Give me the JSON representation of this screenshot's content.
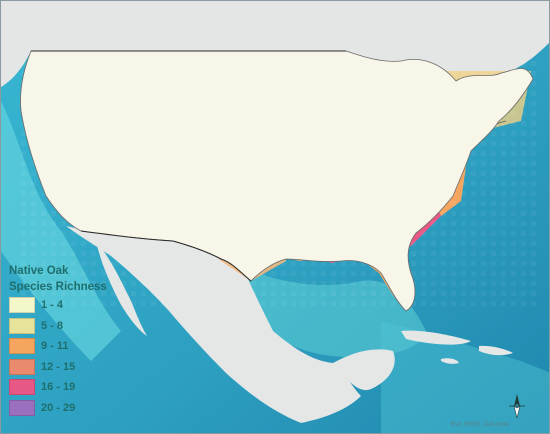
{
  "legend": {
    "title_line1": "Native Oak",
    "title_line2": "Species Richness",
    "classes": [
      {
        "label": "1 - 4",
        "color": "#f4f7c9"
      },
      {
        "label": "5 - 8",
        "color": "#e7e39a"
      },
      {
        "label": "9 - 11",
        "color": "#f6a55f"
      },
      {
        "label": "12 - 15",
        "color": "#e98a6e"
      },
      {
        "label": "16 - 19",
        "color": "#e75886"
      },
      {
        "label": "20 - 29",
        "color": "#9b6fbd"
      }
    ]
  },
  "basemap": {
    "ocean_deep": "#2aa3c2",
    "ocean_shallow": "#7fe7e7",
    "land_other": "#e7e7e7"
  },
  "credits": "Esri, HERE, DeLorme",
  "north_arrow": "north-arrow-icon"
}
